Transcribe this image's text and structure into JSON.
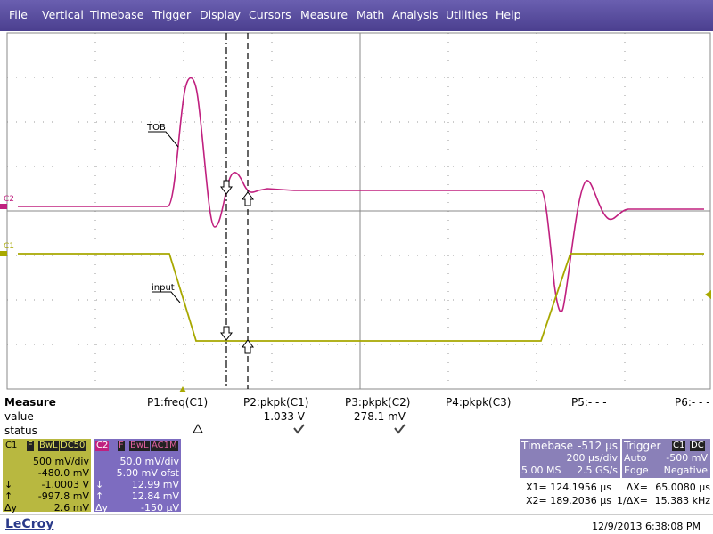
{
  "menu": [
    "File",
    "Vertical",
    "Timebase",
    "Trigger",
    "Display",
    "Cursors",
    "Measure",
    "Math",
    "Analysis",
    "Utilities",
    "Help"
  ],
  "plot": {
    "c2_label": "C2",
    "c1_label": "C1",
    "tob_label": "TOB",
    "input_label": "input"
  },
  "measure": {
    "headers": [
      "Measure",
      "P1:freq(C1)",
      "P2:pkpk(C1)",
      "P3:pkpk(C2)",
      "P4:pkpk(C3)",
      "P5:- - -",
      "P6:- - -"
    ],
    "value_row": [
      "value",
      "---",
      "1.033 V",
      "278.1 mV"
    ],
    "status_row": [
      "status"
    ]
  },
  "c1_panel": {
    "label": "C1",
    "tags": [
      "F",
      "BwL",
      "DC50"
    ],
    "rows": [
      [
        "",
        "500 mV/div"
      ],
      [
        "",
        "-480.0 mV"
      ],
      [
        "↓",
        "-1.0003 V"
      ],
      [
        "↑",
        "-997.8 mV"
      ],
      [
        "Δy",
        "2.6 mV"
      ]
    ]
  },
  "c2_panel": {
    "label": "C2",
    "tags": [
      "F",
      "BwL",
      "AC1M"
    ],
    "rows": [
      [
        "",
        "50.0 mV/div"
      ],
      [
        "",
        "5.00 mV ofst"
      ],
      [
        "↓",
        "12.99 mV"
      ],
      [
        "↑",
        "12.84 mV"
      ],
      [
        "Δy",
        "-150 µV"
      ]
    ]
  },
  "timebase": {
    "title": "Timebase",
    "delay": "-512 µs",
    "per_div": "200 µs/div",
    "samples": "5.00 MS",
    "rate": "2.5 GS/s"
  },
  "trigger": {
    "title": "Trigger",
    "tags": [
      "C1",
      "DC"
    ],
    "mode": "Auto",
    "level": "-500 mV",
    "kind": "Edge",
    "slope": "Negative"
  },
  "cursors": {
    "x1_label": "X1=",
    "x1": "124.1956 µs",
    "dx_label": "ΔX=",
    "dx": "65.0080 µs",
    "x2_label": "X2=",
    "x2": "189.2036 µs",
    "inv_label": "1/ΔX=",
    "inv": "15.383 kHz"
  },
  "brand": "LeCroy",
  "timestamp": "12/9/2013 6:38:08 PM"
}
